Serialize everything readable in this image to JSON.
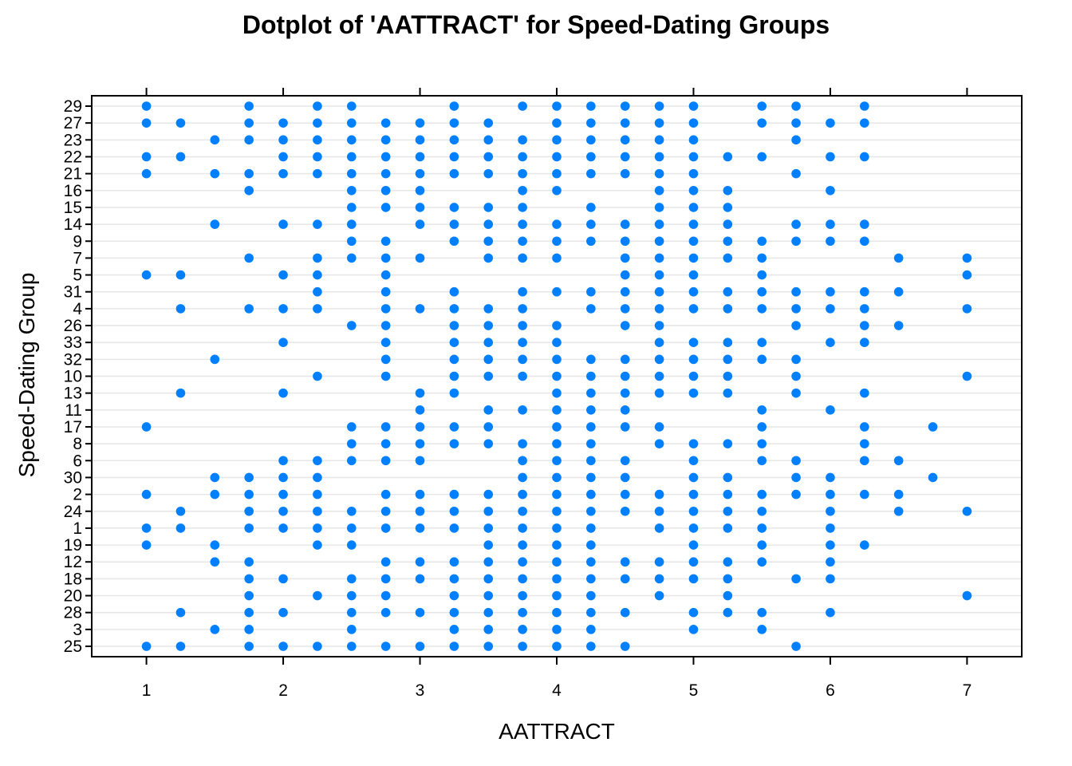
{
  "chart_data": {
    "type": "scatter",
    "title": "Dotplot of 'AATTRACT' for Speed-Dating Groups",
    "xlabel": "AATTRACT",
    "ylabel": "Speed-Dating Group",
    "xlim": [
      0.6,
      7.4
    ],
    "x_ticks": [
      "1",
      "2",
      "3",
      "4",
      "5",
      "6",
      "7"
    ],
    "categories": [
      "25",
      "3",
      "28",
      "20",
      "18",
      "12",
      "19",
      "1",
      "24",
      "2",
      "30",
      "6",
      "8",
      "17",
      "11",
      "13",
      "10",
      "32",
      "33",
      "26",
      "4",
      "31",
      "5",
      "7",
      "9",
      "14",
      "15",
      "16",
      "21",
      "22",
      "23",
      "27",
      "29"
    ],
    "grid": true,
    "point_color": "#0080ff",
    "series": [
      {
        "group": "29",
        "x": [
          1,
          1.75,
          2.25,
          2.5,
          3.25,
          3.75,
          4,
          4.25,
          4.5,
          4.75,
          5,
          5.5,
          5.75,
          6.25
        ]
      },
      {
        "group": "27",
        "x": [
          1,
          1.25,
          1.75,
          2,
          2.25,
          2.5,
          2.75,
          3,
          3.25,
          3.5,
          4,
          4.25,
          4.5,
          4.75,
          5,
          5.5,
          5.75,
          6,
          6.25
        ]
      },
      {
        "group": "23",
        "x": [
          1.5,
          1.75,
          2,
          2.25,
          2.5,
          2.75,
          3,
          3.25,
          3.5,
          3.75,
          4,
          4.25,
          4.5,
          4.75,
          5,
          5.75
        ]
      },
      {
        "group": "22",
        "x": [
          1,
          1.25,
          2,
          2.25,
          2.5,
          2.75,
          3,
          3.25,
          3.5,
          3.75,
          4,
          4.25,
          4.5,
          4.75,
          5,
          5.25,
          5.5,
          6,
          6.25
        ]
      },
      {
        "group": "21",
        "x": [
          1,
          1.5,
          1.75,
          2,
          2.25,
          2.5,
          2.75,
          3,
          3.25,
          3.5,
          3.75,
          4,
          4.25,
          4.5,
          4.75,
          5,
          5.75
        ]
      },
      {
        "group": "16",
        "x": [
          1.75,
          2.5,
          2.75,
          3,
          3.75,
          4,
          4.75,
          5,
          5.25,
          6
        ]
      },
      {
        "group": "15",
        "x": [
          2.5,
          2.75,
          3,
          3.25,
          3.5,
          3.75,
          4.25,
          4.75,
          5,
          5.25
        ]
      },
      {
        "group": "14",
        "x": [
          1.5,
          2,
          2.25,
          2.5,
          3,
          3.25,
          3.5,
          3.75,
          4,
          4.25,
          4.5,
          4.75,
          5,
          5.25,
          5.75,
          6,
          6.25
        ]
      },
      {
        "group": "9",
        "x": [
          2.5,
          2.75,
          3.25,
          3.5,
          3.75,
          4,
          4.25,
          4.5,
          4.75,
          5,
          5.25,
          5.5,
          5.75,
          6,
          6.25
        ]
      },
      {
        "group": "7",
        "x": [
          1.75,
          2.25,
          2.5,
          2.75,
          3,
          3.5,
          3.75,
          4,
          4.5,
          4.75,
          5,
          5.25,
          5.5,
          6.5,
          7
        ]
      },
      {
        "group": "5",
        "x": [
          1,
          1.25,
          2,
          2.25,
          2.75,
          4.5,
          4.75,
          5,
          5.5,
          7
        ]
      },
      {
        "group": "31",
        "x": [
          2.25,
          2.75,
          3.25,
          3.75,
          4,
          4.25,
          4.5,
          4.75,
          5,
          5.25,
          5.5,
          5.75,
          6,
          6.25,
          6.5
        ]
      },
      {
        "group": "4",
        "x": [
          1.25,
          1.75,
          2,
          2.25,
          2.75,
          3,
          3.25,
          3.5,
          3.75,
          4.25,
          4.5,
          4.75,
          5,
          5.25,
          5.5,
          5.75,
          6,
          6.25,
          7
        ]
      },
      {
        "group": "26",
        "x": [
          2.5,
          2.75,
          3.25,
          3.5,
          3.75,
          4,
          4.5,
          4.75,
          5.75,
          6.25,
          6.5
        ]
      },
      {
        "group": "33",
        "x": [
          2,
          2.75,
          3.25,
          3.5,
          3.75,
          4,
          4.75,
          5,
          5.25,
          5.5,
          6,
          6.25
        ]
      },
      {
        "group": "32",
        "x": [
          1.5,
          2.75,
          3.25,
          3.5,
          3.75,
          4,
          4.25,
          4.5,
          4.75,
          5,
          5.25,
          5.5,
          5.75
        ]
      },
      {
        "group": "10",
        "x": [
          2.25,
          2.75,
          3.25,
          3.5,
          3.75,
          4,
          4.25,
          4.5,
          4.75,
          5,
          5.25,
          5.75,
          7
        ]
      },
      {
        "group": "13",
        "x": [
          1.25,
          2,
          3,
          3.25,
          4,
          4.25,
          4.5,
          4.75,
          5,
          5.25,
          5.75,
          6.25
        ]
      },
      {
        "group": "11",
        "x": [
          3,
          3.5,
          3.75,
          4,
          4.25,
          4.5,
          5.5,
          6
        ]
      },
      {
        "group": "17",
        "x": [
          1,
          2.5,
          2.75,
          3,
          3.25,
          3.5,
          4,
          4.25,
          4.5,
          4.75,
          5.5,
          6.25,
          6.75
        ]
      },
      {
        "group": "8",
        "x": [
          2.5,
          2.75,
          3,
          3.25,
          3.5,
          3.75,
          4,
          4.25,
          4.75,
          5,
          5.25,
          5.5,
          6.25
        ]
      },
      {
        "group": "6",
        "x": [
          2,
          2.25,
          2.5,
          2.75,
          3,
          3.75,
          4,
          4.25,
          4.5,
          5,
          5.5,
          5.75,
          6.25,
          6.5
        ]
      },
      {
        "group": "30",
        "x": [
          1.5,
          1.75,
          2,
          2.25,
          3.75,
          4,
          4.25,
          4.5,
          5,
          5.25,
          5.75,
          6,
          6.75
        ]
      },
      {
        "group": "2",
        "x": [
          1,
          1.5,
          1.75,
          2,
          2.25,
          2.75,
          3,
          3.25,
          3.5,
          3.75,
          4,
          4.25,
          4.5,
          4.75,
          5,
          5.25,
          5.5,
          5.75,
          6,
          6.25,
          6.5
        ]
      },
      {
        "group": "24",
        "x": [
          1.25,
          1.75,
          2,
          2.25,
          2.5,
          2.75,
          3,
          3.25,
          3.5,
          3.75,
          4,
          4.25,
          4.5,
          4.75,
          5,
          5.25,
          5.5,
          6,
          6.5,
          7
        ]
      },
      {
        "group": "1",
        "x": [
          1,
          1.25,
          1.75,
          2,
          2.25,
          2.5,
          2.75,
          3,
          3.25,
          3.5,
          3.75,
          4,
          4.25,
          4.75,
          5,
          5.25,
          5.5,
          6
        ]
      },
      {
        "group": "19",
        "x": [
          1,
          1.5,
          2.25,
          2.5,
          3.5,
          3.75,
          4,
          4.25,
          5,
          5.5,
          6,
          6.25
        ]
      },
      {
        "group": "12",
        "x": [
          1.5,
          1.75,
          2.75,
          3,
          3.25,
          3.5,
          3.75,
          4,
          4.25,
          4.5,
          4.75,
          5,
          5.25,
          5.5,
          6
        ]
      },
      {
        "group": "18",
        "x": [
          1.75,
          2,
          2.5,
          2.75,
          3,
          3.25,
          3.5,
          3.75,
          4,
          4.25,
          4.5,
          4.75,
          5,
          5.25,
          5.75,
          6
        ]
      },
      {
        "group": "20",
        "x": [
          1.75,
          2.25,
          2.5,
          2.75,
          3.25,
          3.5,
          3.75,
          4,
          4.25,
          4.75,
          5.25,
          7
        ]
      },
      {
        "group": "28",
        "x": [
          1.25,
          1.75,
          2,
          2.5,
          2.75,
          3,
          3.25,
          3.5,
          3.75,
          4,
          4.25,
          4.5,
          5,
          5.25,
          5.5,
          6
        ]
      },
      {
        "group": "3",
        "x": [
          1.5,
          1.75,
          2.5,
          3.25,
          3.5,
          3.75,
          4,
          4.25,
          5,
          5.5
        ]
      },
      {
        "group": "25",
        "x": [
          1,
          1.25,
          1.75,
          2,
          2.25,
          2.5,
          2.75,
          3,
          3.25,
          3.5,
          3.75,
          4,
          4.25,
          4.5,
          5.75
        ]
      }
    ]
  }
}
